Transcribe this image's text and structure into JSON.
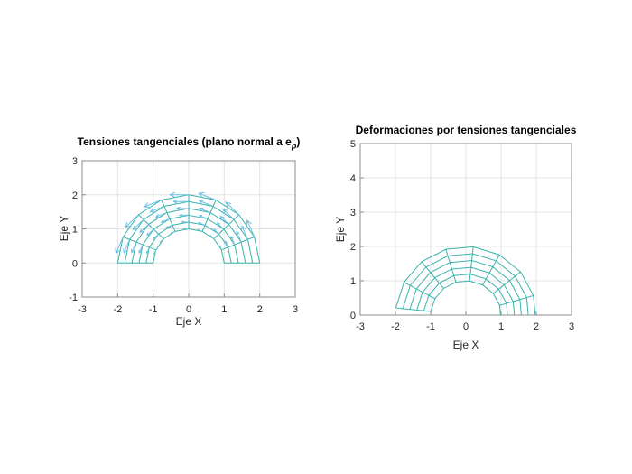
{
  "figure": {
    "background": "#ffffff"
  },
  "chart_data": [
    {
      "type": "quiver",
      "title": "Tensiones tangenciales (plano normal a e",
      "title_subscript": "ρ",
      "title_suffix": ")",
      "xlabel": "Eje X",
      "ylabel": "Eje Y",
      "xlim": [
        -3,
        3
      ],
      "ylim": [
        -1,
        3
      ],
      "xticks": [
        -3,
        -2,
        -1,
        0,
        1,
        2,
        3
      ],
      "yticks": [
        -1,
        0,
        1,
        2,
        3
      ],
      "grid": true,
      "colors": {
        "mesh": "#3ab3ab",
        "quiver": "#6cc0e2",
        "axis": "#8c8c8c",
        "grid": "#e3e3e3",
        "text": "#262626"
      },
      "mesh": {
        "shape": "half-annulus",
        "r_inner": 1,
        "r_outer": 2,
        "radii": [
          1,
          1.2,
          1.4,
          1.6,
          1.8,
          2
        ],
        "n_rings": 5,
        "n_sectors": 8,
        "theta_start_deg": 0,
        "theta_end_deg": 180,
        "rotation_deg": 0
      },
      "quiver_field": {
        "direction": "tangential +e_theta (counterclockwise)",
        "magnitude_formula": "L = 0.13 * rho^2",
        "coeff": 0.13,
        "power": 2,
        "angles_deg": [
          22.5,
          45,
          67.5,
          90,
          112.5,
          135,
          157.5
        ],
        "skip_end_spokes": true
      }
    },
    {
      "type": "mesh",
      "title": "Deformaciones por tensiones tangenciales",
      "title_subscript": "",
      "title_suffix": "",
      "xlabel": "Eje X",
      "ylabel": "Eje Y",
      "xlim": [
        -3,
        3
      ],
      "ylim": [
        0,
        5
      ],
      "xticks": [
        -3,
        -2,
        -1,
        0,
        1,
        2,
        3
      ],
      "yticks": [
        0,
        1,
        2,
        3,
        4,
        5
      ],
      "grid": true,
      "colors": {
        "mesh": "#3ab3ab",
        "axis": "#8c8c8c",
        "grid": "#e3e3e3",
        "text": "#262626"
      },
      "mesh": {
        "shape": "half-annulus (rigid tangential rotation = deformation)",
        "r_inner": 1,
        "r_outer": 2,
        "radii": [
          1,
          1.2,
          1.4,
          1.6,
          1.8,
          2
        ],
        "n_rings": 5,
        "n_sectors": 8,
        "theta_start_deg": 0,
        "theta_end_deg": 180,
        "rotation_deg": -6,
        "clip_below_y": 0
      }
    }
  ]
}
